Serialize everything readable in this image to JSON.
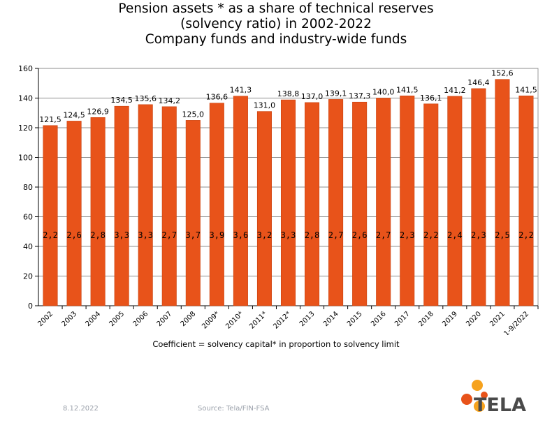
{
  "title_lines": [
    "Pension assets * as a share of technical reserves",
    "(solvency ratio) in 2002-2022",
    "Company funds and industry-wide funds"
  ],
  "caption": "Coefficient = solvency capital* in proportion to solvency limit",
  "footer": {
    "date": "8.12.2022",
    "source": "Source: Tela/FIN-FSA",
    "logo_text": "TELA"
  },
  "colors": {
    "bar": "#e8531a",
    "bar_edge": "#c9410d",
    "logo_orange": "#e8531a",
    "logo_amber": "#f6a21d"
  },
  "chart_data": {
    "type": "bar",
    "categories": [
      "2002",
      "2003",
      "2004",
      "2005",
      "2006",
      "2007",
      "2008",
      "2009*",
      "2010*",
      "2011*",
      "2012*",
      "2013",
      "2014",
      "2015",
      "2016",
      "2017",
      "2018",
      "2019",
      "2020",
      "2021",
      "1-9/2022"
    ],
    "values": [
      121.5,
      124.5,
      126.9,
      134.5,
      135.6,
      134.2,
      125.0,
      136.6,
      141.3,
      131.0,
      138.8,
      137.0,
      139.1,
      137.3,
      140.0,
      141.5,
      136.1,
      141.2,
      146.4,
      152.6,
      141.5
    ],
    "value_labels": [
      "121,5",
      "124,5",
      "126,9",
      "134,5",
      "135,6",
      "134,2",
      "125,0",
      "136,6",
      "141,3",
      "131,0",
      "138,8",
      "137,0",
      "139,1",
      "137,3",
      "140,0",
      "141,5",
      "136,1",
      "141,2",
      "146,4",
      "152,6",
      "141,5"
    ],
    "coefficients": [
      "2,2",
      "2,6",
      "2,8",
      "3,3",
      "3,3",
      "2,7",
      "3,7",
      "3,9",
      "3,6",
      "3,2",
      "3,3",
      "2,8",
      "2,7",
      "2,6",
      "2,7",
      "2,3",
      "2,2",
      "2,4",
      "2,3",
      "2,5",
      "2,2"
    ],
    "ylim": [
      0,
      160
    ],
    "yticks": [
      0,
      20,
      40,
      60,
      80,
      100,
      120,
      140,
      160
    ],
    "grid": true,
    "legend": "none"
  }
}
